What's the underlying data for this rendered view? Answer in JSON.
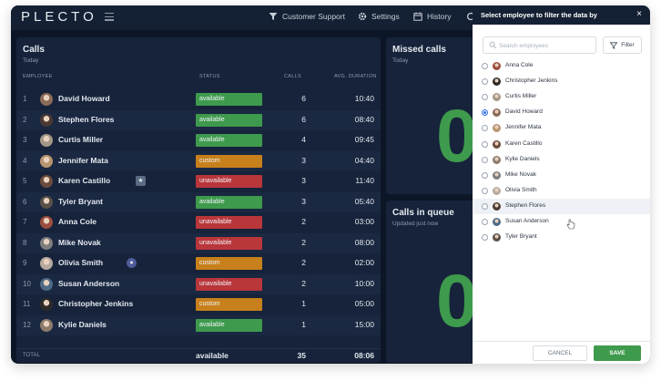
{
  "app": {
    "logo": "PLECTO"
  },
  "nav": {
    "customer_support": "Customer Support",
    "settings": "Settings",
    "history": "History"
  },
  "calls": {
    "title": "Calls",
    "subtitle": "Today",
    "headers": {
      "employee": "EMPLOYEE",
      "status": "STATUS",
      "calls": "CALLS",
      "duration": "AVG. DURATION"
    },
    "rows": [
      {
        "rank": "1",
        "name": "David Howard",
        "status": "available",
        "calls": "6",
        "duration": "10:40",
        "avatar_color": "#8a6b5a"
      },
      {
        "rank": "2",
        "name": "Stephen Flores",
        "status": "available",
        "calls": "6",
        "duration": "08:40",
        "avatar_color": "#4a3a33"
      },
      {
        "rank": "3",
        "name": "Curtis Miller",
        "status": "available",
        "calls": "4",
        "duration": "09:45",
        "avatar_color": "#a49787"
      },
      {
        "rank": "4",
        "name": "Jennifer Mata",
        "status": "custom",
        "calls": "3",
        "duration": "04:40",
        "avatar_color": "#b89470"
      },
      {
        "rank": "5",
        "name": "Karen Castillo",
        "status": "unavailable",
        "calls": "3",
        "duration": "11:40",
        "avatar_color": "#6a4b3c",
        "badge": "★"
      },
      {
        "rank": "6",
        "name": "Tyler Bryant",
        "status": "available",
        "calls": "3",
        "duration": "05:40",
        "avatar_color": "#5a5048"
      },
      {
        "rank": "7",
        "name": "Anna Cole",
        "status": "unavailable",
        "calls": "2",
        "duration": "03:00",
        "avatar_color": "#9b4e3e"
      },
      {
        "rank": "8",
        "name": "Mike Novak",
        "status": "unavailable",
        "calls": "2",
        "duration": "08:00",
        "avatar_color": "#7d7d7d"
      },
      {
        "rank": "9",
        "name": "Olivia Smith",
        "status": "custom",
        "calls": "2",
        "duration": "02:00",
        "avatar_color": "#b7aa9e",
        "badge": "●"
      },
      {
        "rank": "10",
        "name": "Susan Anderson",
        "status": "unavailable",
        "calls": "2",
        "duration": "10:00",
        "avatar_color": "#4f6a86"
      },
      {
        "rank": "11",
        "name": "Christopher Jenkins",
        "status": "custom",
        "calls": "1",
        "duration": "05:00",
        "avatar_color": "#2d2a28"
      },
      {
        "rank": "12",
        "name": "Kylie Daniels",
        "status": "available",
        "calls": "1",
        "duration": "15:00",
        "avatar_color": "#8e7b6c"
      }
    ],
    "total": {
      "label": "TOTAL",
      "status": "available",
      "calls": "35",
      "duration": "08:06"
    }
  },
  "missed": {
    "title": "Missed calls",
    "subtitle": "Today",
    "value": "0"
  },
  "queue": {
    "title": "Calls in queue",
    "subtitle": "Updated just now",
    "value": "0"
  },
  "filter_panel": {
    "title": "Select employee to filter the data by",
    "close": "×",
    "search_placeholder": "Search employees",
    "filter_label": "Filter",
    "options": [
      {
        "name": "Anna Cole",
        "checked": false,
        "avatar_color": "#9b4e3e"
      },
      {
        "name": "Christopher Jenkins",
        "checked": false,
        "avatar_color": "#2d2a28"
      },
      {
        "name": "Curtis Miller",
        "checked": false,
        "avatar_color": "#a49787"
      },
      {
        "name": "David Howard",
        "checked": true,
        "avatar_color": "#8a6b5a"
      },
      {
        "name": "Jennifer Mata",
        "checked": false,
        "avatar_color": "#b89470"
      },
      {
        "name": "Karen Castillo",
        "checked": false,
        "avatar_color": "#6a4b3c"
      },
      {
        "name": "Kylie Daniels",
        "checked": false,
        "avatar_color": "#8e7b6c"
      },
      {
        "name": "Mike Novak",
        "checked": false,
        "avatar_color": "#7d7d7d"
      },
      {
        "name": "Olivia Smith",
        "checked": false,
        "avatar_color": "#b7aa9e"
      },
      {
        "name": "Stephen Flores",
        "checked": false,
        "avatar_color": "#4a3a33",
        "hovered": true
      },
      {
        "name": "Susan Anderson",
        "checked": false,
        "avatar_color": "#4f6a86"
      },
      {
        "name": "Tyler Bryant",
        "checked": false,
        "avatar_color": "#5a5048"
      }
    ],
    "cancel_label": "CANCEL",
    "save_label": "SAVE"
  }
}
